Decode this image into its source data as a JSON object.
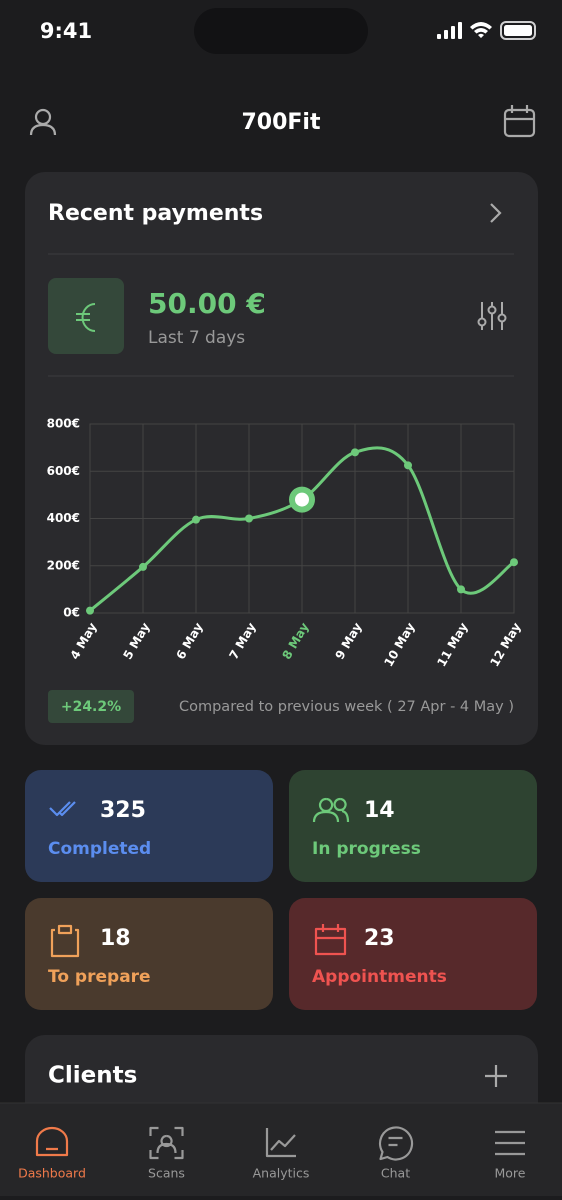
{
  "status_bar": {
    "time": "9:41"
  },
  "header": {
    "title": "700Fit"
  },
  "payments": {
    "title": "Recent payments",
    "amount": "50.00 €",
    "period": "Last 7 days",
    "change": "+24.2%",
    "comparison": "Compared to previous week ( 27 Apr - 4 May )"
  },
  "chart_data": {
    "type": "line",
    "categories": [
      "4 May",
      "5 May",
      "6 May",
      "7 May",
      "8 May",
      "9 May",
      "10 May",
      "11 May",
      "12 May"
    ],
    "values": [
      10,
      195,
      395,
      400,
      480,
      680,
      625,
      100,
      215
    ],
    "color": "#6dc97a",
    "highlight_index": 4,
    "ylim": [
      0,
      800
    ],
    "yticks": [
      {
        "value": 0,
        "label": "0€"
      },
      {
        "value": 200,
        "label": "200€"
      },
      {
        "value": 400,
        "label": "400€"
      },
      {
        "value": 600,
        "label": "600€"
      },
      {
        "value": 800,
        "label": "800€"
      }
    ],
    "grid": true
  },
  "stats": [
    {
      "value": 325,
      "label": "Completed"
    },
    {
      "value": 14,
      "label": "In progress"
    },
    {
      "value": 18,
      "label": "To prepare"
    },
    {
      "value": 23,
      "label": "Appointments"
    }
  ],
  "clients": {
    "title": "Clients"
  },
  "nav": {
    "items": [
      "Dashboard",
      "Scans",
      "Analytics",
      "Chat",
      "More"
    ],
    "active": 0
  }
}
